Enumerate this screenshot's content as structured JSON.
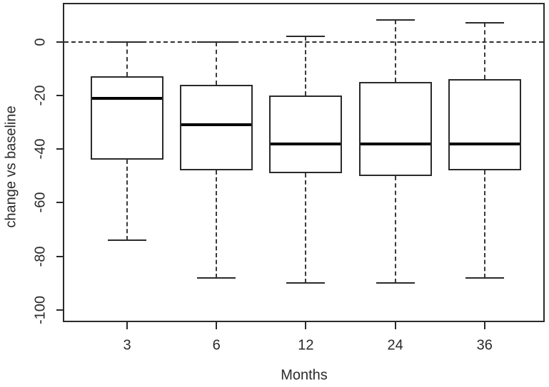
{
  "chart_data": {
    "type": "boxplot",
    "title": "",
    "xlabel": "Months",
    "ylabel": "change vs baseline",
    "categories": [
      "3",
      "6",
      "12",
      "24",
      "36"
    ],
    "y_tick_labels": [
      "0",
      "-20",
      "-40",
      "-60",
      "-80",
      "-100"
    ],
    "y_tick_values": [
      0,
      -20,
      -40,
      -60,
      -80,
      -100
    ],
    "ylim": [
      -105,
      14.5
    ],
    "reference_line": {
      "y": 0,
      "style": "dashed"
    },
    "grid": false,
    "legend_position": "none",
    "boxes": [
      {
        "category": "3",
        "whisker_low": -74,
        "q1": -44,
        "median": -21,
        "q3": -13,
        "whisker_high": 0
      },
      {
        "category": "6",
        "whisker_low": -88,
        "q1": -48,
        "median": -31,
        "q3": -16,
        "whisker_high": 0
      },
      {
        "category": "12",
        "whisker_low": -90,
        "q1": -49,
        "median": -38,
        "q3": -20,
        "whisker_high": 2
      },
      {
        "category": "24",
        "whisker_low": -90,
        "q1": -50,
        "median": -38,
        "q3": -15,
        "whisker_high": 8
      },
      {
        "category": "36",
        "whisker_low": -88,
        "q1": -48,
        "median": -38,
        "q3": -14,
        "whisker_high": 7
      }
    ],
    "colors": {
      "line": "#2a2a2a",
      "median": "#000000",
      "background": "#ffffff"
    }
  }
}
